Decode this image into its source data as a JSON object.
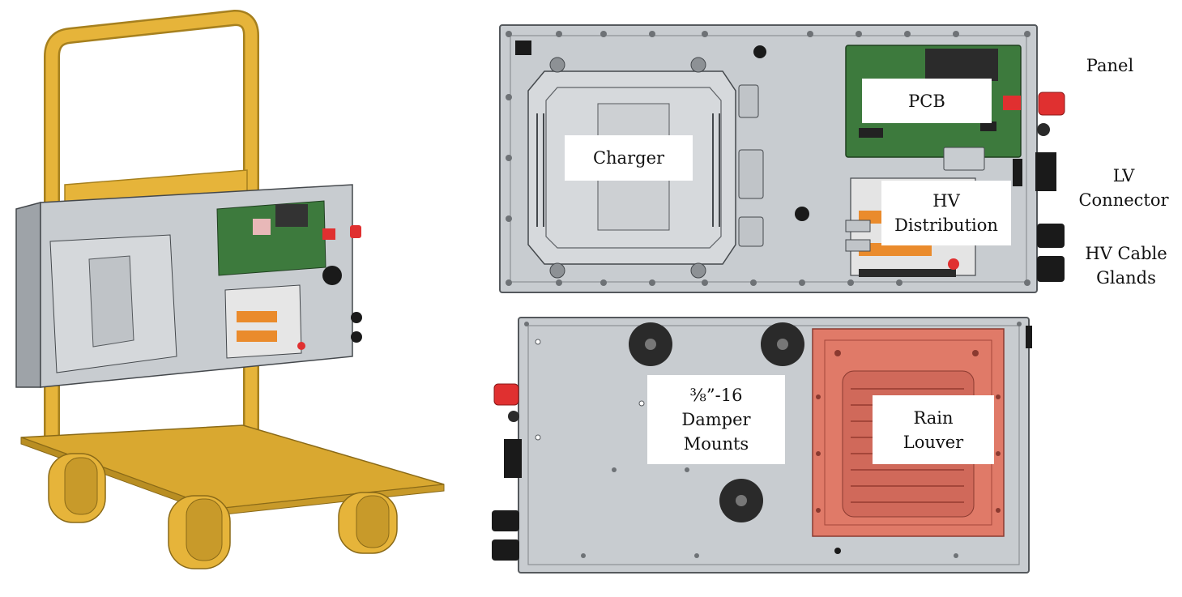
{
  "labels": {
    "charger": "Charger",
    "pcb": "PCB",
    "hv_distribution": "HV\nDistribution",
    "damper_mounts": "⅜”-16\nDamper\nMounts",
    "rain_louver": "Rain\nLouver",
    "panel": "Panel",
    "lv_connector": "LV\nConnector",
    "hv_cable_glands": "HV Cable\nGlands"
  },
  "colors": {
    "cart_yellow": "#e6b43a",
    "cart_dark": "#a6801e",
    "enclosure_gray": "#c8ccd0",
    "enclosure_edge": "#5b5f63",
    "pcb_green": "#3d7a3d",
    "connector_red": "#e03030",
    "louver_red": "#e07a68",
    "terminal_orange": "#ea8b2c",
    "gland_black": "#1a1a1a"
  }
}
